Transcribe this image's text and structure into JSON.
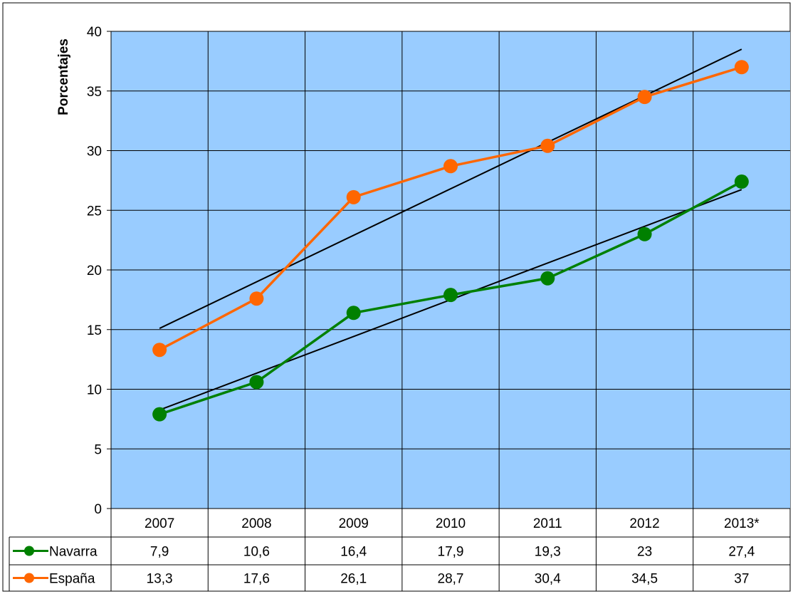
{
  "chart_data": {
    "type": "line",
    "ylabel": "Porcentajes",
    "ylim": [
      0,
      40
    ],
    "y_ticks": [
      "0",
      "5",
      "10",
      "15",
      "20",
      "25",
      "30",
      "35",
      "40"
    ],
    "categories": [
      "2007",
      "2008",
      "2009",
      "2010",
      "2011",
      "2012",
      "2013*"
    ],
    "grid": true,
    "trendlines": true,
    "legend": "data-table-bottom",
    "plot_background": "#99ccff",
    "series": [
      {
        "name": "Navarra",
        "values": [
          7.9,
          10.6,
          16.4,
          17.9,
          19.3,
          23,
          27.4
        ],
        "labels": [
          "7,9",
          "10,6",
          "16,4",
          "17,9",
          "19,3",
          "23",
          "27,4"
        ],
        "color": "#008000"
      },
      {
        "name": "España",
        "values": [
          13.3,
          17.6,
          26.1,
          28.7,
          30.4,
          34.5,
          37
        ],
        "labels": [
          "13,3",
          "17,6",
          "26,1",
          "28,7",
          "30,4",
          "34,5",
          "37"
        ],
        "color": "#ff6600"
      }
    ],
    "trendline_color": "#000000"
  }
}
